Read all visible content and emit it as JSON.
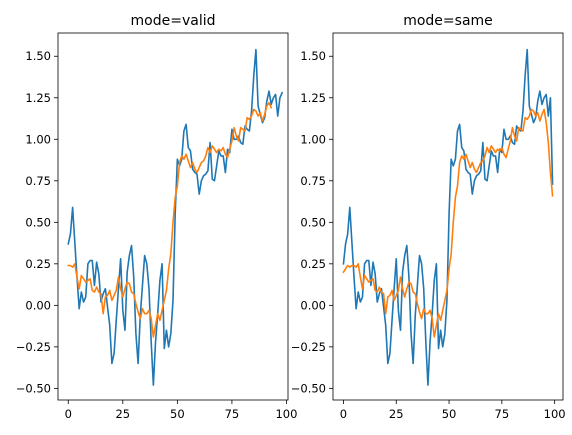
{
  "chart_data": [
    {
      "type": "line",
      "title": "mode=valid",
      "xlim": [
        -4.7,
        100.7
      ],
      "ylim": [
        -0.57,
        1.64
      ],
      "xticks": [
        0,
        25,
        50,
        75,
        100
      ],
      "yticks": [
        -0.5,
        -0.25,
        0.0,
        0.25,
        0.5,
        0.75,
        1.0,
        1.25,
        1.5
      ],
      "ytick_labels": [
        "−0.50",
        "−0.25",
        "0.00",
        "0.25",
        "0.50",
        "0.75",
        "1.00",
        "1.25",
        "1.50"
      ],
      "grid": false,
      "series": [
        {
          "color": "#1f77b4",
          "x_start": 0,
          "values": [
            0.37,
            0.43,
            0.59,
            0.38,
            0.17,
            -0.02,
            0.08,
            0.02,
            0.05,
            0.25,
            0.27,
            0.27,
            0.12,
            0.26,
            0.19,
            0.02,
            0.07,
            0.1,
            -0.01,
            -0.12,
            -0.35,
            -0.29,
            -0.09,
            0.1,
            0.28,
            -0.03,
            -0.15,
            0.2,
            0.3,
            0.36,
            0.17,
            -0.17,
            -0.35,
            -0.06,
            0.12,
            0.3,
            0.25,
            0.1,
            -0.22,
            -0.48,
            -0.22,
            -0.05,
            0.15,
            0.25,
            -0.26,
            -0.15,
            -0.25,
            -0.17,
            0.03,
            0.55,
            0.88,
            0.84,
            0.88,
            1.05,
            1.09,
            0.95,
            0.93,
            0.82,
            0.8,
            0.79,
            0.67,
            0.75,
            0.78,
            0.79,
            0.81,
            0.98,
            0.76,
            0.75,
            0.84,
            0.93,
            0.9,
            0.9,
            0.8,
            0.94,
            0.92,
            1.06,
            1.0,
            1.0,
            1.02,
            0.98,
            0.97,
            1.08,
            1.06,
            1.05,
            1.17,
            1.38,
            1.54,
            1.2,
            1.15,
            1.1,
            1.13,
            1.23,
            1.29,
            1.21,
            1.25,
            1.27,
            1.14,
            1.25,
            1.28
          ]
        },
        {
          "color": "#ff7f0e",
          "x_start": 0,
          "values": [
            0.24,
            0.24,
            0.23,
            0.25,
            0.17,
            0.1,
            0.18,
            0.16,
            0.14,
            0.15,
            0.16,
            0.09,
            0.08,
            0.11,
            0.08,
            0.07,
            -0.05,
            0.05,
            0.06,
            0.09,
            0.03,
            0.06,
            0.09,
            0.17,
            0.1,
            0.05,
            0.1,
            0.14,
            0.13,
            0.08,
            0.07,
            0.01,
            -0.04,
            -0.08,
            -0.02,
            -0.05,
            -0.05,
            -0.03,
            -0.08,
            -0.19,
            -0.12,
            -0.05,
            -0.09,
            -0.03,
            0.03,
            0.09,
            0.22,
            0.31,
            0.5,
            0.65,
            0.72,
            0.86,
            0.9,
            0.88,
            0.91,
            0.87,
            0.83,
            0.86,
            0.82,
            0.8,
            0.83,
            0.86,
            0.87,
            0.9,
            0.95,
            0.92,
            0.96,
            0.94,
            0.92,
            0.94,
            0.93,
            0.95,
            0.91,
            0.89,
            0.94,
            0.99,
            1.07,
            1.02,
            0.99,
            1.07,
            1.06,
            1.05,
            1.13,
            1.12,
            1.14,
            1.18,
            1.17,
            1.14,
            1.16,
            1.11,
            1.15,
            1.2,
            1.22,
            1.19
          ]
        }
      ]
    },
    {
      "type": "line",
      "title": "mode=same",
      "xlim": [
        -4.95,
        103.95
      ],
      "ylim": [
        -0.57,
        1.64
      ],
      "xticks": [
        0,
        25,
        50,
        75,
        100
      ],
      "yticks": [
        -0.5,
        -0.25,
        0.0,
        0.25,
        0.5,
        0.75,
        1.0,
        1.25,
        1.5
      ],
      "ytick_labels": [
        "−0.50",
        "−0.25",
        "0.00",
        "0.25",
        "0.50",
        "0.75",
        "1.00",
        "1.25",
        "1.50"
      ],
      "grid": false,
      "series": [
        {
          "color": "#1f77b4",
          "x_start": 0,
          "values": [
            0.25,
            0.37,
            0.43,
            0.59,
            0.38,
            0.17,
            -0.02,
            0.08,
            0.02,
            0.05,
            0.25,
            0.27,
            0.27,
            0.12,
            0.26,
            0.19,
            0.02,
            0.07,
            0.1,
            -0.01,
            -0.12,
            -0.35,
            -0.29,
            -0.09,
            0.1,
            0.28,
            -0.03,
            -0.15,
            0.2,
            0.3,
            0.36,
            0.17,
            -0.17,
            -0.35,
            -0.06,
            0.12,
            0.3,
            0.25,
            0.1,
            -0.22,
            -0.48,
            -0.22,
            -0.05,
            0.15,
            0.25,
            -0.26,
            -0.15,
            -0.25,
            -0.17,
            0.03,
            0.55,
            0.88,
            0.84,
            0.88,
            1.05,
            1.09,
            0.95,
            0.93,
            0.82,
            0.8,
            0.79,
            0.67,
            0.75,
            0.78,
            0.79,
            0.81,
            0.98,
            0.76,
            0.75,
            0.84,
            0.93,
            0.9,
            0.9,
            0.8,
            0.94,
            0.92,
            1.06,
            1.0,
            1.0,
            1.02,
            0.98,
            0.97,
            1.08,
            1.06,
            1.05,
            1.17,
            1.38,
            1.54,
            1.2,
            1.15,
            1.1,
            1.13,
            1.23,
            1.29,
            1.21,
            1.25,
            1.27,
            1.14,
            1.25,
            0.73
          ]
        },
        {
          "color": "#ff7f0e",
          "x_start": 0,
          "values": [
            0.2,
            0.22,
            0.24,
            0.23,
            0.24,
            0.24,
            0.23,
            0.25,
            0.17,
            0.1,
            0.18,
            0.16,
            0.14,
            0.15,
            0.16,
            0.09,
            0.08,
            0.11,
            0.08,
            0.07,
            -0.05,
            0.05,
            0.06,
            0.09,
            0.03,
            0.06,
            0.09,
            0.17,
            0.1,
            0.05,
            0.1,
            0.14,
            0.13,
            0.08,
            0.07,
            0.01,
            -0.04,
            -0.08,
            -0.02,
            -0.05,
            -0.05,
            -0.03,
            -0.08,
            -0.19,
            -0.12,
            -0.05,
            -0.09,
            -0.03,
            0.03,
            0.09,
            0.22,
            0.31,
            0.5,
            0.65,
            0.72,
            0.86,
            0.9,
            0.88,
            0.91,
            0.87,
            0.83,
            0.86,
            0.82,
            0.8,
            0.83,
            0.86,
            0.87,
            0.9,
            0.95,
            0.92,
            0.96,
            0.94,
            0.92,
            0.94,
            0.93,
            0.95,
            0.91,
            0.89,
            0.94,
            0.99,
            1.07,
            1.02,
            0.99,
            1.07,
            1.06,
            1.05,
            1.13,
            1.12,
            1.14,
            1.18,
            1.17,
            1.14,
            1.16,
            1.11,
            1.15,
            1.18,
            1.1,
            0.98,
            0.8,
            0.66
          ]
        }
      ]
    }
  ]
}
